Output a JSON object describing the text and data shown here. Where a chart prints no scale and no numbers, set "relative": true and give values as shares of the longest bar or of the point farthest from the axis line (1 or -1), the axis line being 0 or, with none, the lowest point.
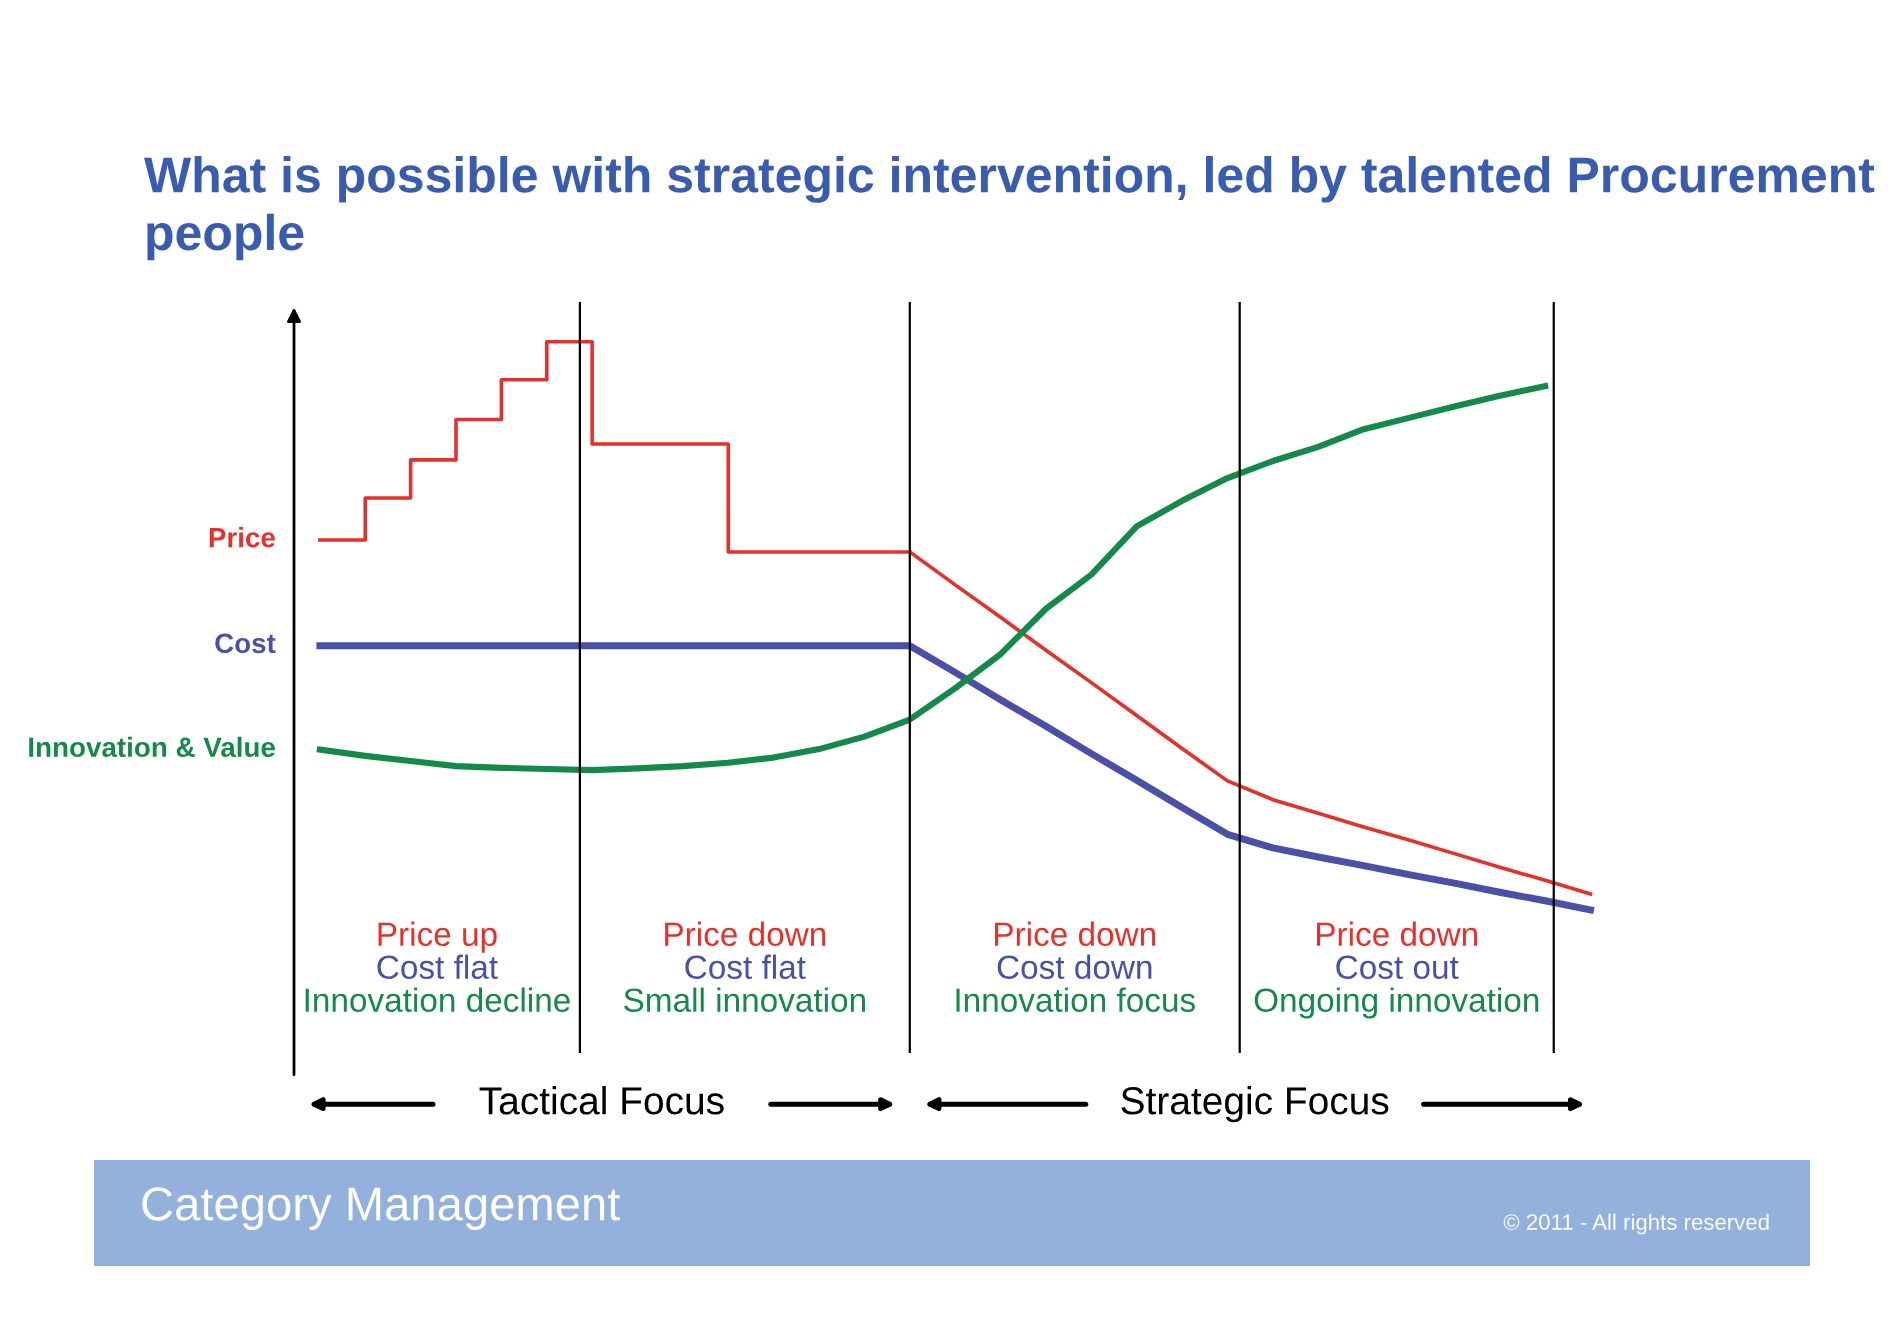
{
  "chart_data": {
    "type": "line",
    "title": "What is possible with strategic intervention, led by talented Procurement people",
    "relative": true,
    "legend": false,
    "categories": [
      null,
      null,
      null,
      null,
      null,
      null,
      null,
      null,
      null,
      null,
      null,
      null,
      null,
      null,
      null,
      null,
      null,
      null,
      null,
      null,
      null,
      null,
      null,
      null,
      null,
      null,
      null,
      null,
      null
    ],
    "series": [
      {
        "name": "Price",
        "type": "step",
        "color": "#e8302a",
        "values": [
          0.651,
          0.725,
          0.792,
          0.863,
          0.933,
          1,
          0.82,
          0.82,
          0.82,
          0.63,
          0.63,
          0.63,
          0.63,
          0.63,
          null,
          null,
          null,
          null,
          null,
          null,
          null,
          null,
          null,
          null,
          null,
          null,
          null,
          null,
          null
        ]
      },
      {
        "type": "line",
        "color": "#e8302a",
        "values": [
          null,
          null,
          null,
          null,
          null,
          null,
          null,
          null,
          null,
          null,
          null,
          null,
          null,
          0.63,
          0.572,
          0.515,
          0.457,
          0.4,
          0.342,
          0.284,
          0.227,
          0.194,
          0.17,
          0.146,
          0.123,
          0.099,
          0.075,
          0.052,
          0.028
        ]
      },
      {
        "name": "Cost",
        "color": "#4a4fa8",
        "values": [
          0.465,
          0.465,
          0.465,
          0.465,
          0.465,
          0.465,
          0.465,
          0.465,
          0.465,
          0.465,
          0.465,
          0.465,
          0.465,
          0.465,
          0.418,
          0.37,
          0.323,
          0.275,
          0.228,
          0.18,
          0.133,
          0.109,
          0.093,
          0.078,
          0.062,
          0.047,
          0.031,
          0.016,
          0
        ]
      },
      {
        "name": "Innovation & Value",
        "color": "#13894a",
        "values": [
          0.282,
          0.271,
          0.262,
          0.253,
          0.25,
          0.248,
          0.246,
          0.249,
          0.253,
          0.259,
          0.268,
          0.283,
          0.305,
          0.335,
          0.39,
          0.45,
          0.53,
          0.59,
          0.675,
          0.72,
          0.76,
          0.79,
          0.815,
          0.846,
          0.866,
          0.886,
          0.905,
          0.922,
          null
        ]
      }
    ],
    "annotations": [
      "Price up\nCost flat\nInnovation decline",
      "Price down\nCost flat\nSmall innovation",
      "Price down\nCost down\nInnovation focus",
      "Price down\nCost out\nOngoing innovation",
      "Tactical Focus",
      "Strategic Focus",
      "Category Management",
      "© 2011 - All rights reserved"
    ]
  }
}
